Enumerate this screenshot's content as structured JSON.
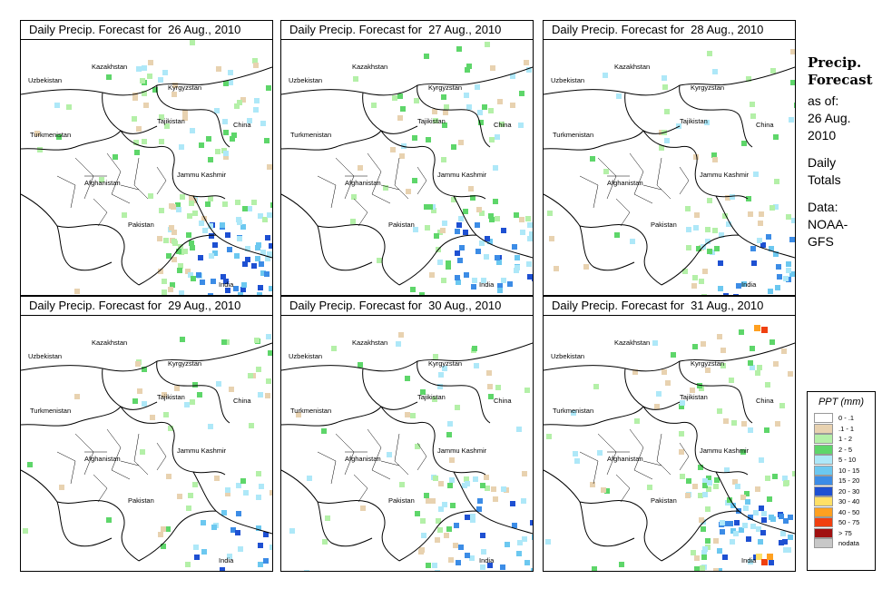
{
  "panels": [
    {
      "title": "Daily Precip. Forecast for  26 Aug., 2010",
      "wet": 1.0
    },
    {
      "title": "Daily Precip. Forecast for  27 Aug., 2010",
      "wet": 0.72
    },
    {
      "title": "Daily Precip. Forecast for  28 Aug., 2010",
      "wet": 0.55
    },
    {
      "title": "Daily Precip. Forecast for  29 Aug., 2010",
      "wet": 0.45
    },
    {
      "title": "Daily Precip. Forecast for  30 Aug., 2010",
      "wet": 0.6
    },
    {
      "title": "Daily Precip. Forecast for  31 Aug., 2010",
      "wet": 0.85
    }
  ],
  "map_labels": {
    "uzbekistan": "Uzbekistan",
    "kazakhstan": "Kazakhstan",
    "kyrgyzstan": "Kyrgyzstan",
    "tajikistan": "Tajikistan",
    "turkmenistan": "Turkmenistan",
    "china": "China",
    "afghanistan": "Afghanistan",
    "jammu_kashmir": "Jammu Kashmir",
    "pakistan": "Pakistan",
    "india": "India"
  },
  "sidebar": {
    "heading_line1": "Precip.",
    "heading_line2": "Forecast",
    "as_of_label": "as of:",
    "as_of_date": "26 Aug.",
    "as_of_year": "2010",
    "totals_line1": "Daily",
    "totals_line2": "Totals",
    "data_label": "Data:",
    "data_source1": "NOAA-",
    "data_source2": "GFS"
  },
  "legend": {
    "title": "PPT (mm)",
    "items": [
      {
        "label": "0 - .1",
        "color": "#ffffff"
      },
      {
        "label": ".1 - 1",
        "color": "#e8d2b0"
      },
      {
        "label": "1 - 2",
        "color": "#b4f0a8"
      },
      {
        "label": "2 - 5",
        "color": "#5ed66a"
      },
      {
        "label": "5 - 10",
        "color": "#aee8f8"
      },
      {
        "label": "10 - 15",
        "color": "#6cc8f0"
      },
      {
        "label": "15 - 20",
        "color": "#3c8ce6"
      },
      {
        "label": "20 - 30",
        "color": "#1e50d2"
      },
      {
        "label": "30 - 40",
        "color": "#ffe066"
      },
      {
        "label": "40 - 50",
        "color": "#ffa020"
      },
      {
        "label": "50 - 75",
        "color": "#f04010"
      },
      {
        "label": "> 75",
        "color": "#a01010"
      },
      {
        "label": "nodata",
        "color": "#c8c8c8"
      }
    ]
  }
}
